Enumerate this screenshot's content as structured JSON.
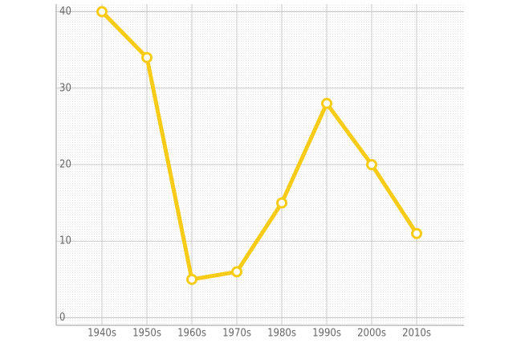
{
  "chart_data": {
    "type": "line",
    "categories": [
      "1940s",
      "1950s",
      "1960s",
      "1970s",
      "1980s",
      "1990s",
      "2000s",
      "2010s"
    ],
    "values": [
      40,
      34,
      5,
      6,
      15,
      28,
      20,
      11
    ],
    "color": "#f7cb16",
    "ylim": [
      -1,
      41
    ],
    "yticks": [
      0,
      10,
      20,
      30,
      40
    ],
    "grid": true
  }
}
